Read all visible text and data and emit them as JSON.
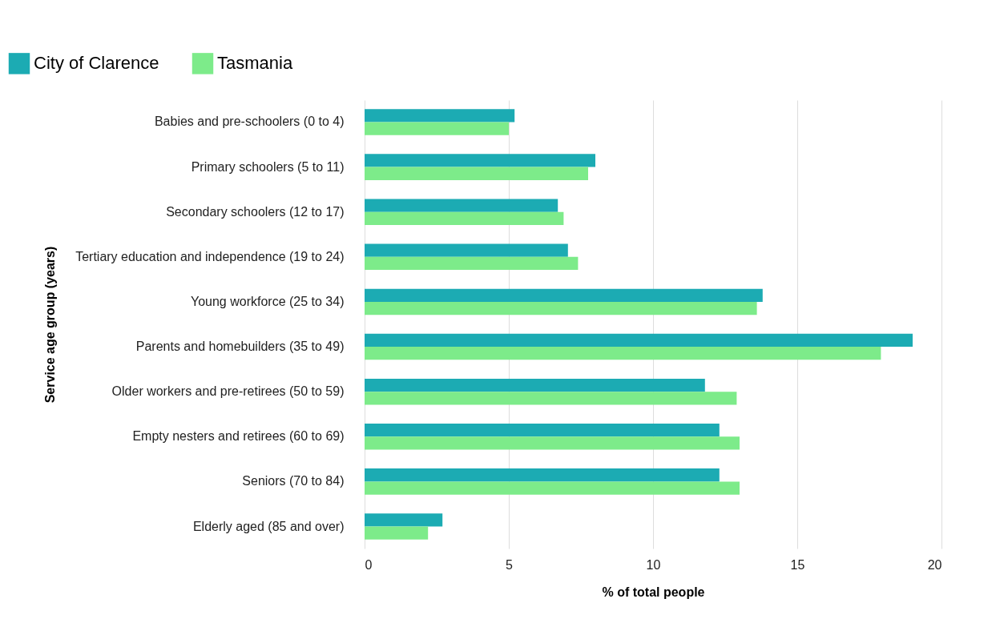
{
  "chart_data": {
    "type": "bar",
    "orientation": "horizontal",
    "xlabel": "% of total people",
    "ylabel": "Service age group (years)",
    "categories": [
      "Babies and pre-schoolers (0 to 4)",
      "Primary schoolers (5 to 11)",
      "Secondary schoolers (12 to 17)",
      "Tertiary education and independence (19 to 24)",
      "Young workforce (25 to 34)",
      "Parents and homebuilders (35 to 49)",
      "Older workers and pre-retirees (50 to 59)",
      "Empty nesters and retirees (60 to 69)",
      "Seniors (70 to 84)",
      "Elderly aged (85 and over)"
    ],
    "series": [
      {
        "name": "City of Clarence",
        "color": "#1cabb3",
        "values": [
          5.2,
          8.0,
          6.7,
          7.05,
          13.8,
          19.0,
          11.8,
          12.3,
          12.3,
          2.7
        ]
      },
      {
        "name": "Tasmania",
        "color": "#7deb8a",
        "values": [
          5.0,
          7.75,
          6.9,
          7.4,
          13.6,
          17.9,
          12.9,
          13.0,
          13.0,
          2.2
        ]
      }
    ],
    "xlim": [
      0,
      20
    ],
    "xticks": [
      0,
      5,
      10,
      15,
      20
    ],
    "grid": "x",
    "legend": "top left"
  }
}
